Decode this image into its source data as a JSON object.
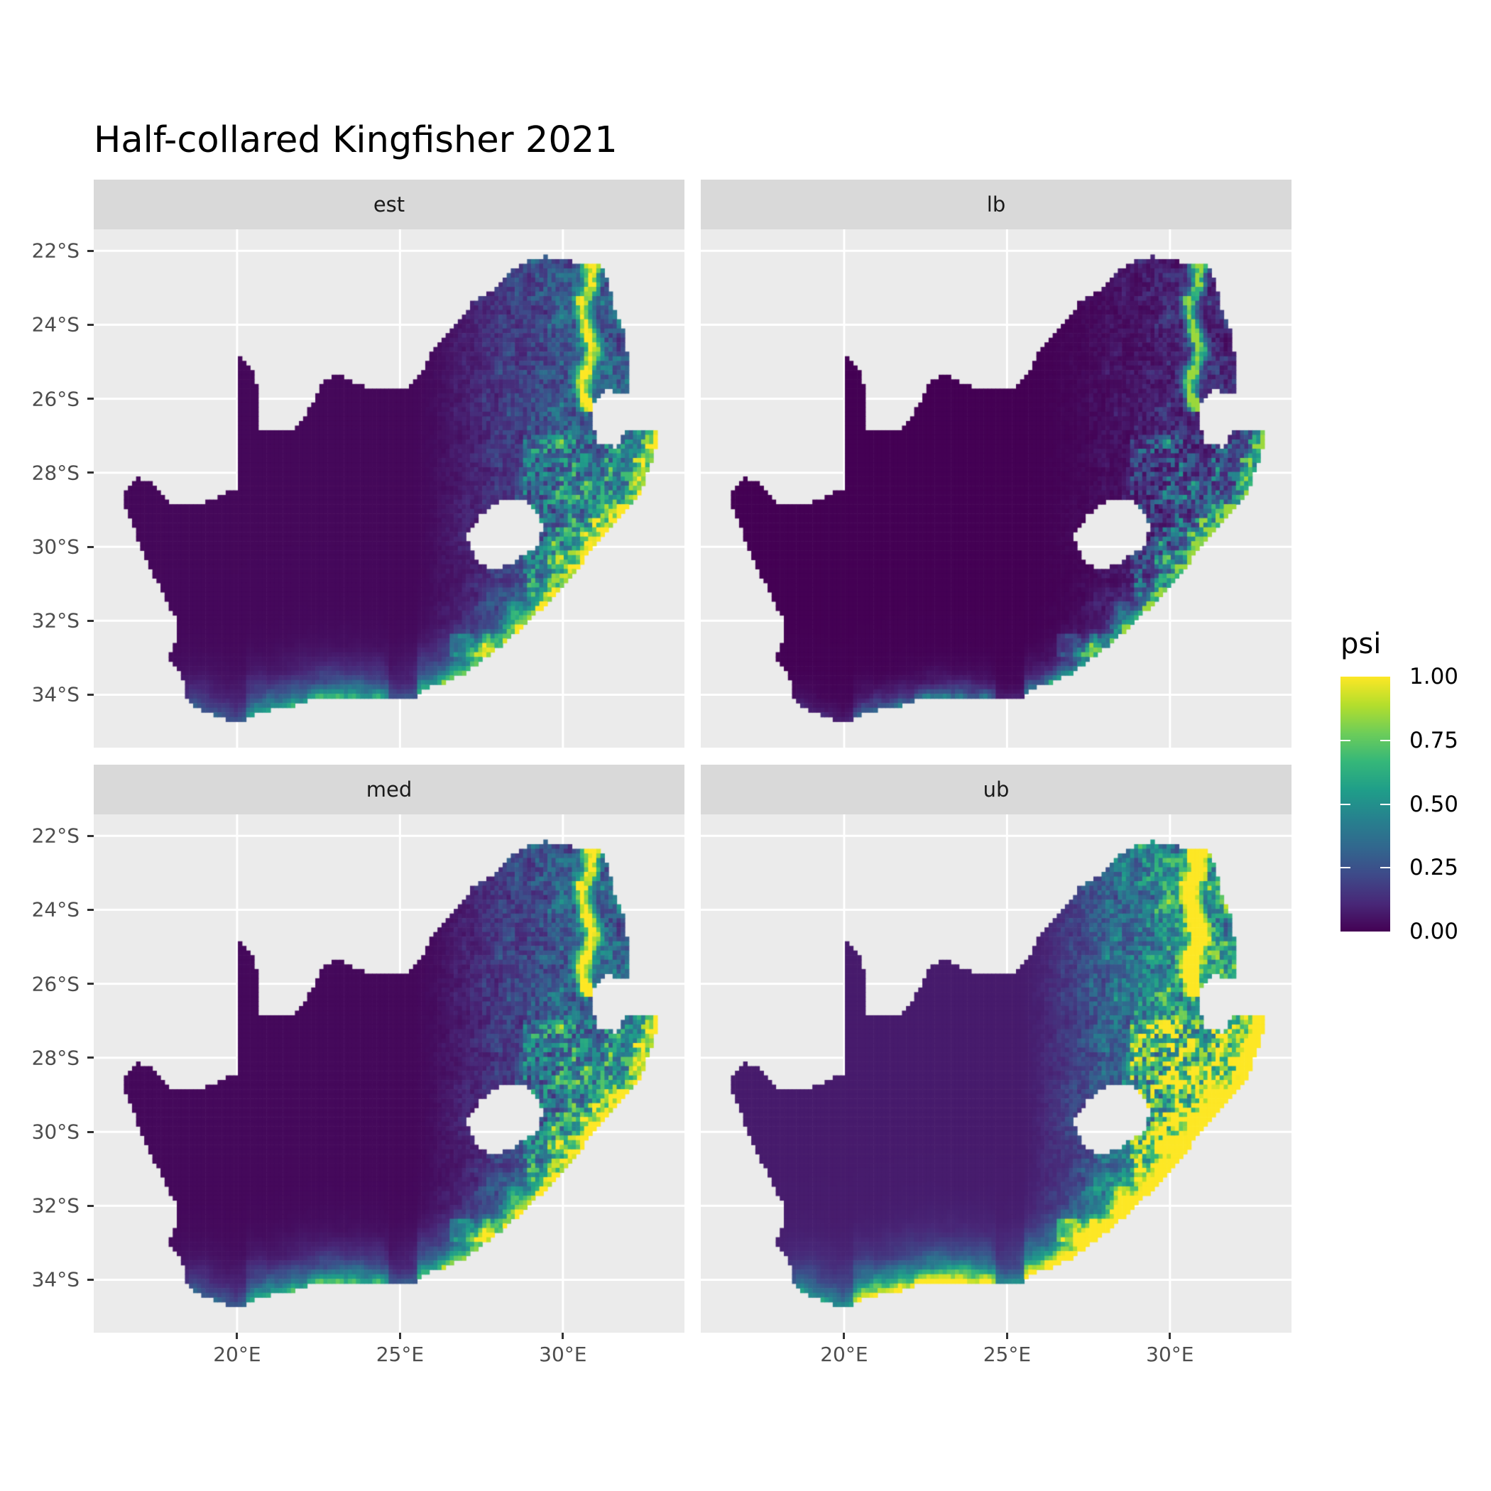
{
  "title": "Half-collared Kingfisher 2021",
  "facets": [
    {
      "label": "est"
    },
    {
      "label": "lb"
    },
    {
      "label": "med"
    },
    {
      "label": "ub"
    }
  ],
  "axes": {
    "y_ticks": [
      {
        "value": -22,
        "label": "22°S"
      },
      {
        "value": -24,
        "label": "24°S"
      },
      {
        "value": -26,
        "label": "26°S"
      },
      {
        "value": -28,
        "label": "28°S"
      },
      {
        "value": -30,
        "label": "30°S"
      },
      {
        "value": -32,
        "label": "32°S"
      },
      {
        "value": -34,
        "label": "34°S"
      }
    ],
    "x_ticks": [
      {
        "value": 20,
        "label": "20°E"
      },
      {
        "value": 25,
        "label": "25°E"
      },
      {
        "value": 30,
        "label": "30°E"
      }
    ]
  },
  "legend": {
    "title": "psi",
    "ticks": [
      {
        "value": 1.0,
        "label": "1.00"
      },
      {
        "value": 0.75,
        "label": "0.75"
      },
      {
        "value": 0.5,
        "label": "0.50"
      },
      {
        "value": 0.25,
        "label": "0.25"
      },
      {
        "value": 0.0,
        "label": "0.00"
      }
    ],
    "palette": [
      "#440154",
      "#482878",
      "#3E4A89",
      "#31688E",
      "#26828E",
      "#1F9E89",
      "#35B779",
      "#6DCD59",
      "#B4DE2C",
      "#FDE725"
    ]
  },
  "chart_data": {
    "type": "heatmap",
    "title": "Half-collared Kingfisher 2021",
    "facets": [
      "est",
      "lb",
      "med",
      "ub"
    ],
    "fill": "psi",
    "fill_range": [
      0,
      1
    ],
    "xlim": [
      15.6,
      33.7
    ],
    "ylim": [
      -35.4,
      -21.4
    ],
    "grid": true,
    "legend_position": "right",
    "colors": {
      "panel_background": "#EBEBEB",
      "strip_background": "#D9D9D9",
      "grid": "#FFFFFF"
    }
  }
}
